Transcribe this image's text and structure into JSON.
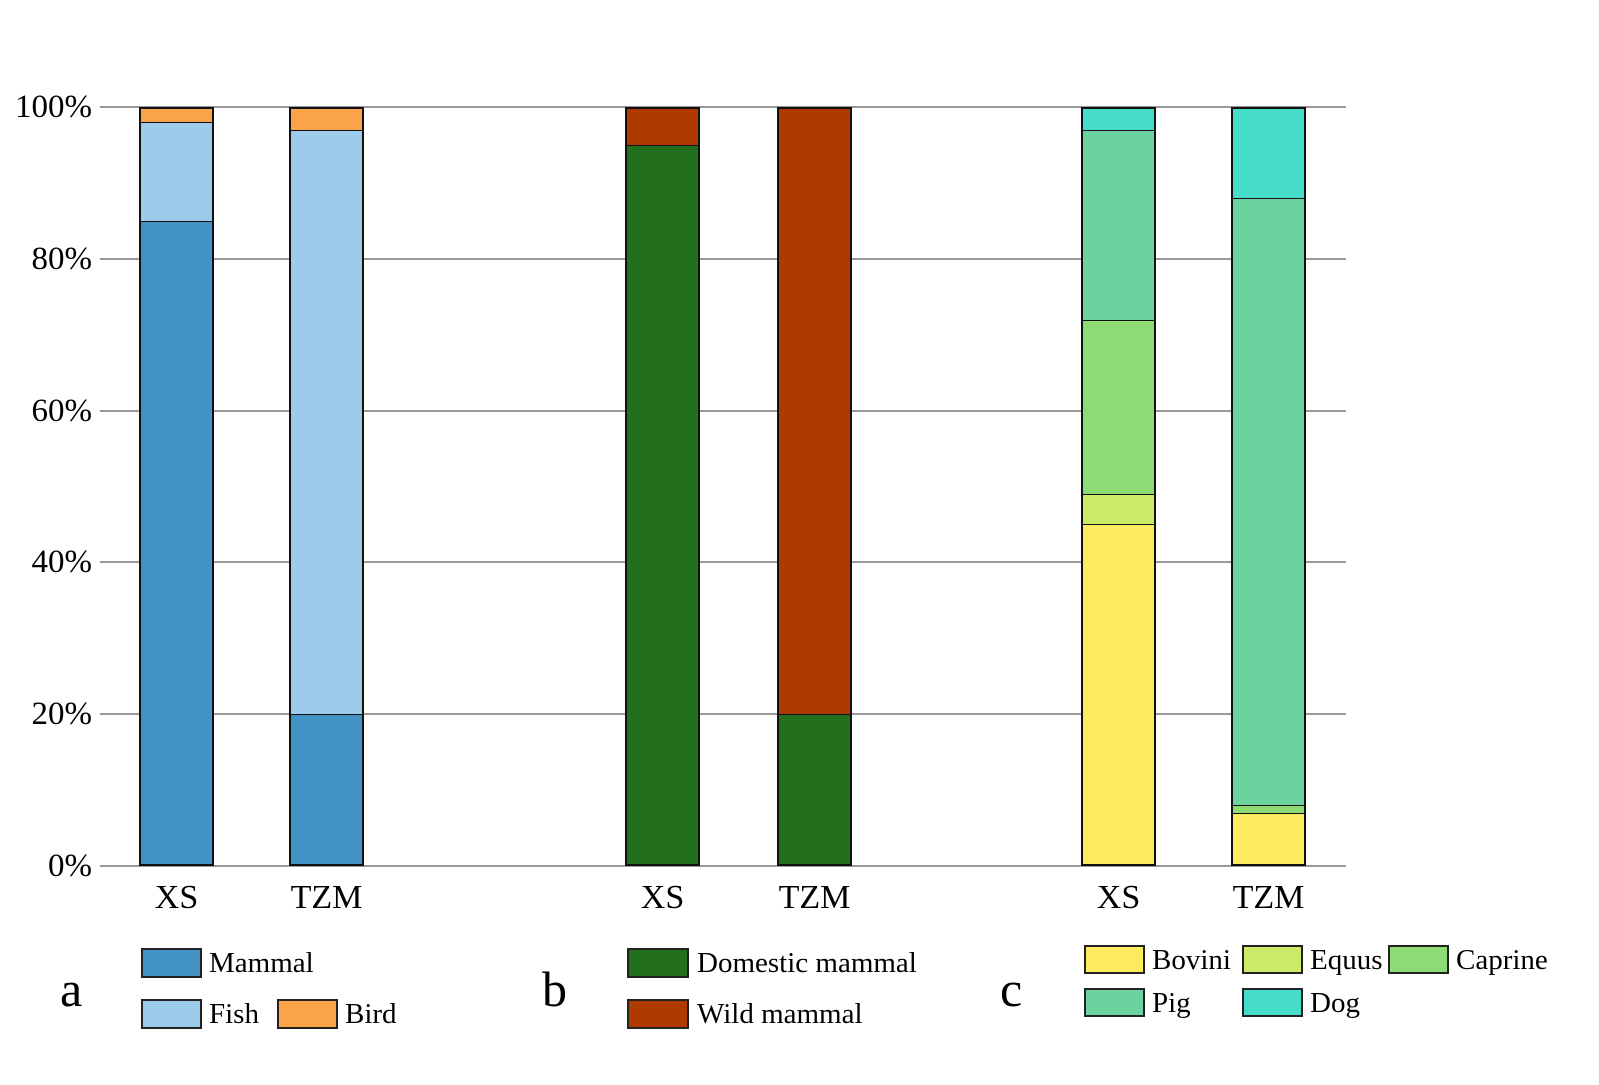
{
  "figure": {
    "background": "#ffffff",
    "grid_color": "#999999",
    "bar_border_color": "#111111",
    "text_color": "#000000"
  },
  "y_axis": {
    "tick_labels": [
      "0%",
      "20%",
      "40%",
      "60%",
      "80%",
      "100%"
    ],
    "tick_values": [
      0,
      20,
      40,
      60,
      80,
      100
    ],
    "ylim": [
      0,
      100
    ],
    "grid": true
  },
  "chart_data": [
    {
      "panel": "a",
      "type": "bar",
      "stacked": true,
      "unit": "percent",
      "categories": [
        "XS",
        "TZM"
      ],
      "series": [
        {
          "name": "Mammal",
          "color": "#4292c6",
          "values": [
            85,
            20
          ]
        },
        {
          "name": "Fish",
          "color": "#9dcbea",
          "values": [
            13,
            77
          ]
        },
        {
          "name": "Bird",
          "color": "#fba348",
          "values": [
            2,
            3
          ]
        }
      ],
      "ylim": [
        0,
        100
      ],
      "legend_position": "bottom",
      "legend_rows": [
        [
          0
        ],
        [
          1,
          2
        ]
      ]
    },
    {
      "panel": "b",
      "type": "bar",
      "stacked": true,
      "unit": "percent",
      "categories": [
        "XS",
        "TZM"
      ],
      "series": [
        {
          "name": "Domestic mammal",
          "color": "#226f1e",
          "values": [
            95,
            20
          ]
        },
        {
          "name": "Wild mammal",
          "color": "#ae3a00",
          "values": [
            5,
            80
          ]
        }
      ],
      "ylim": [
        0,
        100
      ],
      "legend_position": "bottom",
      "legend_rows": [
        [
          0
        ],
        [
          1
        ]
      ]
    },
    {
      "panel": "c",
      "type": "bar",
      "stacked": true,
      "unit": "percent",
      "categories": [
        "XS",
        "TZM"
      ],
      "series": [
        {
          "name": "Bovini",
          "color": "#fdeb5f",
          "values": [
            45,
            7
          ]
        },
        {
          "name": "Equus",
          "color": "#cbea68",
          "values": [
            4,
            0
          ]
        },
        {
          "name": "Caprine",
          "color": "#8cdb74",
          "values": [
            23,
            1
          ]
        },
        {
          "name": "Pig",
          "color": "#6bd2a0",
          "values": [
            25,
            80
          ]
        },
        {
          "name": "Dog",
          "color": "#45dcca",
          "values": [
            3,
            12
          ]
        }
      ],
      "ylim": [
        0,
        100
      ],
      "legend_position": "bottom",
      "legend_rows": [
        [
          0,
          1,
          2
        ],
        [
          3,
          4
        ]
      ]
    }
  ]
}
